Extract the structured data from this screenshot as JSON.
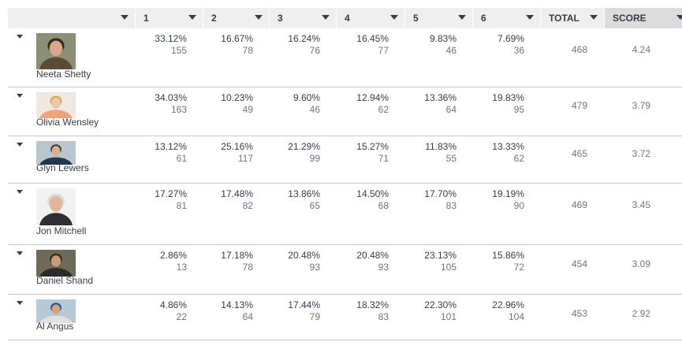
{
  "header": {
    "columns": [
      "",
      "1",
      "2",
      "3",
      "4",
      "5",
      "6",
      "TOTAL",
      "SCORE"
    ]
  },
  "rows": [
    {
      "name": "Neeta Shetty",
      "cells": [
        {
          "pct": "33.12%",
          "n": "155"
        },
        {
          "pct": "16.67%",
          "n": "78"
        },
        {
          "pct": "16.24%",
          "n": "76"
        },
        {
          "pct": "16.45%",
          "n": "77"
        },
        {
          "pct": "9.83%",
          "n": "46"
        },
        {
          "pct": "7.69%",
          "n": "36"
        }
      ],
      "total": "468",
      "score": "4.24",
      "avatar": "woman-dark-hair-photo"
    },
    {
      "name": "Olivia Wensley",
      "cells": [
        {
          "pct": "34.03%",
          "n": "163"
        },
        {
          "pct": "10.23%",
          "n": "49"
        },
        {
          "pct": "9.60%",
          "n": "46"
        },
        {
          "pct": "12.94%",
          "n": "62"
        },
        {
          "pct": "13.36%",
          "n": "64"
        },
        {
          "pct": "19.83%",
          "n": "95"
        }
      ],
      "total": "479",
      "score": "3.79",
      "avatar": "woman-blonde-photo"
    },
    {
      "name": "Glyn Lewers",
      "cells": [
        {
          "pct": "13.12%",
          "n": "61"
        },
        {
          "pct": "25.16%",
          "n": "117"
        },
        {
          "pct": "21.29%",
          "n": "99"
        },
        {
          "pct": "15.27%",
          "n": "71"
        },
        {
          "pct": "11.83%",
          "n": "55"
        },
        {
          "pct": "13.33%",
          "n": "62"
        }
      ],
      "total": "465",
      "score": "3.72",
      "avatar": "man-outdoor-photo"
    },
    {
      "name": "Jon Mitchell",
      "cells": [
        {
          "pct": "17.27%",
          "n": "81"
        },
        {
          "pct": "17.48%",
          "n": "82"
        },
        {
          "pct": "13.86%",
          "n": "65"
        },
        {
          "pct": "14.50%",
          "n": "68"
        },
        {
          "pct": "17.70%",
          "n": "83"
        },
        {
          "pct": "19.19%",
          "n": "90"
        }
      ],
      "total": "469",
      "score": "3.45",
      "avatar": "man-suit-photo"
    },
    {
      "name": "Daniel Shand",
      "cells": [
        {
          "pct": "2.86%",
          "n": "13"
        },
        {
          "pct": "17.18%",
          "n": "78"
        },
        {
          "pct": "20.48%",
          "n": "93"
        },
        {
          "pct": "20.48%",
          "n": "93"
        },
        {
          "pct": "23.13%",
          "n": "105"
        },
        {
          "pct": "15.86%",
          "n": "72"
        }
      ],
      "total": "454",
      "score": "3.09",
      "avatar": "man-beard-photo"
    },
    {
      "name": "Al Angus",
      "cells": [
        {
          "pct": "4.86%",
          "n": "22"
        },
        {
          "pct": "14.13%",
          "n": "64"
        },
        {
          "pct": "17.44%",
          "n": "79"
        },
        {
          "pct": "18.32%",
          "n": "83"
        },
        {
          "pct": "22.30%",
          "n": "101"
        },
        {
          "pct": "22.96%",
          "n": "104"
        }
      ],
      "total": "453",
      "score": "2.92",
      "avatar": "man-cap-photo"
    }
  ]
}
